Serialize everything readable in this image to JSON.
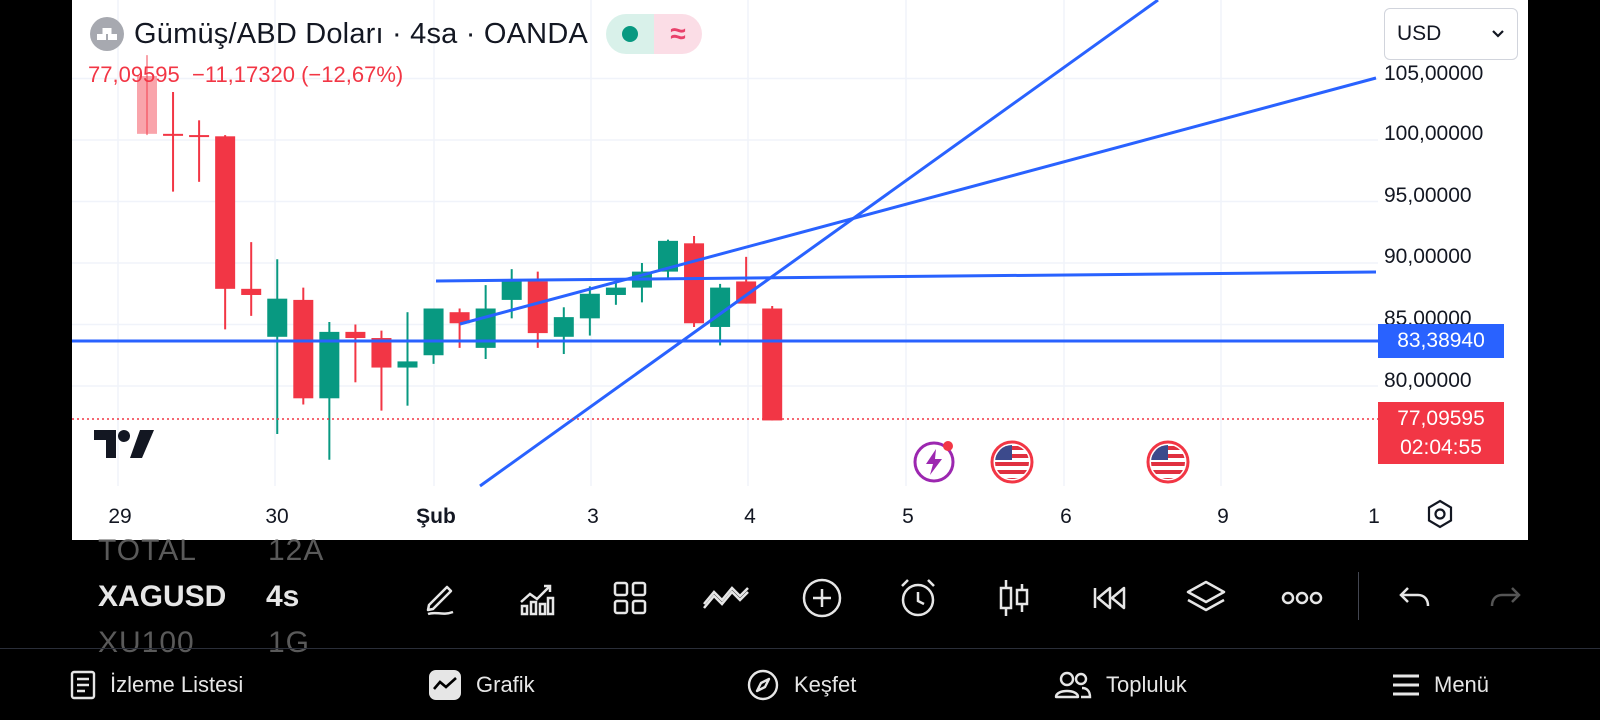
{
  "chart": {
    "title": "Gümüş/ABD Doları · 4sa · OANDA",
    "quote": {
      "price": "77,09595",
      "change": "−11,17320",
      "change_pct": "(−12,67%)"
    },
    "currency": "USD",
    "price_axis": [
      "105,00000",
      "100,00000",
      "95,00000",
      "90,00000",
      "85,00000",
      "80,00000"
    ],
    "tags": {
      "line_value": "83,38940",
      "last_price": "77,09595",
      "countdown": "02:04:55"
    },
    "time_axis": [
      "29",
      "30",
      "Şub",
      "3",
      "4",
      "5",
      "6",
      "9",
      "1"
    ],
    "colors": {
      "up": "#089981",
      "down": "#f23645",
      "drawing": "#2962ff",
      "price_line": "#2962ff"
    }
  },
  "watchlist": {
    "rows": [
      {
        "symbol": "TOTAL",
        "interval": "12A"
      },
      {
        "symbol": "XAGUSD",
        "interval": "4s"
      },
      {
        "symbol": "XU100",
        "interval": "1G"
      }
    ]
  },
  "toolbar": {
    "tools": [
      "pencil-icon",
      "indicators-icon",
      "grid-icon",
      "pattern-icon",
      "add-icon",
      "alarm-icon",
      "candles-icon",
      "replay-icon",
      "layers-icon",
      "more-icon",
      "undo-icon",
      "redo-icon"
    ]
  },
  "nav": {
    "watchlist": "İzleme Listesi",
    "chart": "Grafik",
    "explore": "Keşfet",
    "community": "Topluluk",
    "menu": "Menü"
  }
}
